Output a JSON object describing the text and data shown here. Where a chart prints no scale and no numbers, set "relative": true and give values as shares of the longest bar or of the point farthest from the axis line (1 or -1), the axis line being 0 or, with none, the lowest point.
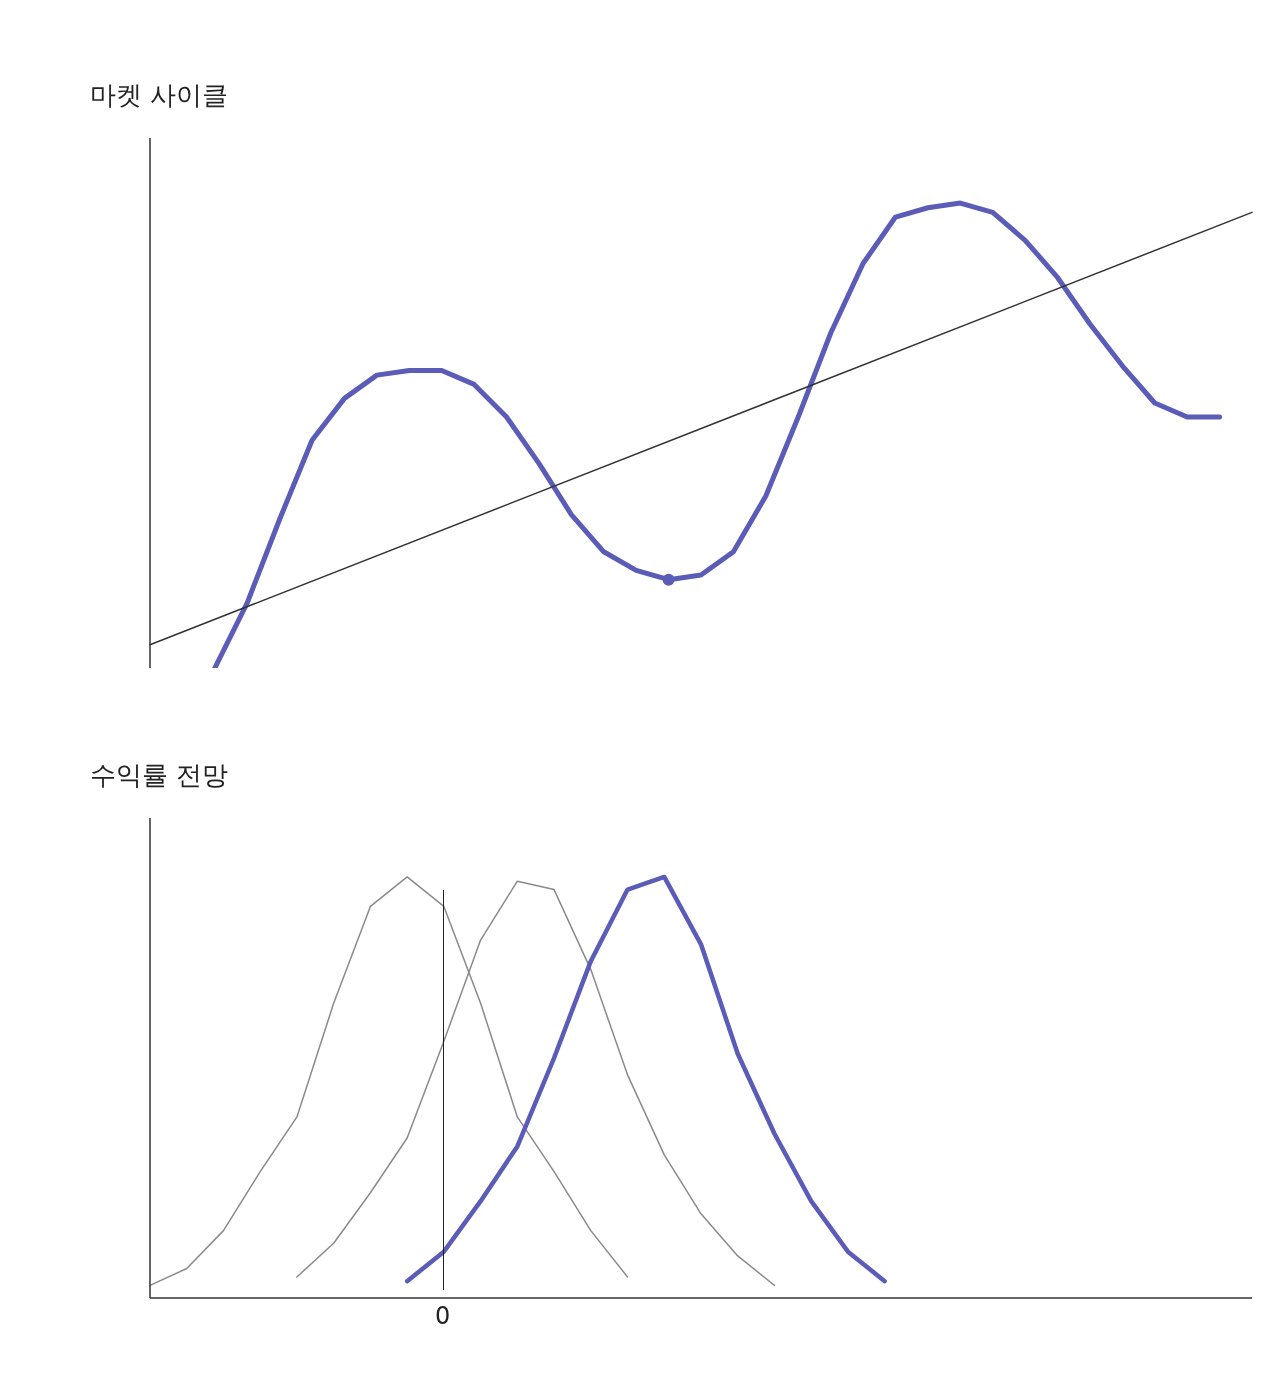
{
  "chart_data": [
    {
      "type": "line",
      "ylabel": "마켓 사이클",
      "relative": true,
      "marker": "none",
      "line_style": "solid",
      "categories": [
        null,
        null,
        null,
        null,
        null,
        null,
        null,
        null,
        null,
        null,
        null,
        null,
        null,
        null,
        null,
        null,
        null,
        null,
        null,
        null,
        null,
        null,
        null,
        null,
        null,
        null,
        null,
        null,
        null,
        null,
        null,
        null,
        null,
        null,
        null
      ],
      "series": [
        {
          "color": "#5b5bb8",
          "values": [
            null,
            null,
            0,
            0.14,
            0.32,
            0.49,
            0.58,
            0.63,
            0.64,
            0.64,
            0.61,
            0.54,
            0.44,
            0.33,
            0.25,
            0.21,
            0.19,
            0.2,
            0.25,
            0.37,
            0.54,
            0.72,
            0.87,
            0.97,
            0.99,
            1,
            0.98,
            0.92,
            0.84,
            0.74,
            0.65,
            0.57,
            0.54,
            0.54,
            null
          ]
        },
        {
          "color": "#333333",
          "values": [
            0.05,
            null,
            null,
            null,
            null,
            null,
            null,
            null,
            null,
            null,
            null,
            null,
            null,
            null,
            null,
            null,
            null,
            null,
            null,
            null,
            null,
            null,
            null,
            null,
            null,
            null,
            null,
            null,
            null,
            null,
            null,
            null,
            null,
            null,
            0.98
          ]
        },
        {
          "marker": "circle",
          "color": "#5b5bb8",
          "values": [
            null,
            null,
            null,
            null,
            null,
            null,
            null,
            null,
            null,
            null,
            null,
            null,
            null,
            null,
            null,
            null,
            0.19,
            null,
            null,
            null,
            null,
            null,
            null,
            null,
            null,
            null,
            null,
            null,
            null,
            null,
            null,
            null,
            null,
            null,
            null
          ]
        }
      ]
    },
    {
      "type": "line",
      "ylabel": "수익률 전망",
      "relative": true,
      "marker": "none",
      "line_style": "solid",
      "categories": [
        null,
        null,
        null,
        null,
        null,
        null,
        null,
        null,
        null,
        null,
        null,
        null,
        null,
        null,
        null,
        null,
        null,
        null,
        null,
        null,
        null,
        null,
        null,
        null,
        null,
        null,
        null,
        null,
        null,
        null,
        null
      ],
      "annotations": [
        "0"
      ],
      "series": [
        {
          "color": "#8a8a8a",
          "values": [
            0.03,
            0.07,
            0.16,
            0.3,
            0.43,
            0.7,
            0.93,
            1,
            0.93,
            0.7,
            0.43,
            0.3,
            0.16,
            0.05,
            null,
            null,
            null,
            null,
            null,
            null,
            null,
            null,
            null,
            null,
            null,
            null,
            null,
            null,
            null,
            null,
            null
          ]
        },
        {
          "color": "#8a8a8a",
          "values": [
            null,
            null,
            null,
            null,
            0.05,
            0.13,
            0.25,
            0.38,
            0.61,
            0.85,
            0.99,
            0.97,
            0.78,
            0.53,
            0.34,
            0.2,
            0.1,
            0.03,
            null,
            null,
            null,
            null,
            null,
            null,
            null,
            null,
            null,
            null,
            null,
            null,
            null
          ]
        },
        {
          "color": "#5b5bb8",
          "values": [
            null,
            null,
            null,
            null,
            null,
            null,
            null,
            0.04,
            0.11,
            0.23,
            0.36,
            0.57,
            0.8,
            0.97,
            1,
            0.84,
            0.58,
            0.39,
            0.23,
            0.11,
            0.04,
            null,
            null,
            null,
            null,
            null,
            null,
            null,
            null,
            null,
            null
          ]
        }
      ]
    }
  ]
}
